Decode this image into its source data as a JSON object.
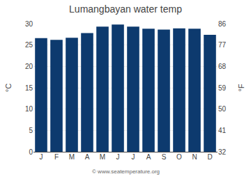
{
  "chart_data": {
    "type": "bar",
    "title": "Lumangbayan water temp",
    "categories": [
      "J",
      "F",
      "M",
      "A",
      "M",
      "J",
      "J",
      "A",
      "S",
      "O",
      "N",
      "D"
    ],
    "values": [
      26.6,
      26.2,
      26.7,
      27.8,
      29.3,
      29.8,
      29.3,
      28.8,
      28.6,
      28.9,
      28.8,
      27.4
    ],
    "color": "#0d3a6e",
    "ylabel": "°C",
    "y2label": "°F",
    "ylim": [
      0,
      30
    ],
    "yticks": [
      0,
      5,
      10,
      15,
      20,
      25,
      30
    ],
    "y2lim": [
      32,
      86
    ],
    "y2ticks": [
      32,
      41,
      50,
      59,
      68,
      77,
      86
    ],
    "grid": true,
    "annotations": [
      "© www.seatemperature.org"
    ]
  }
}
